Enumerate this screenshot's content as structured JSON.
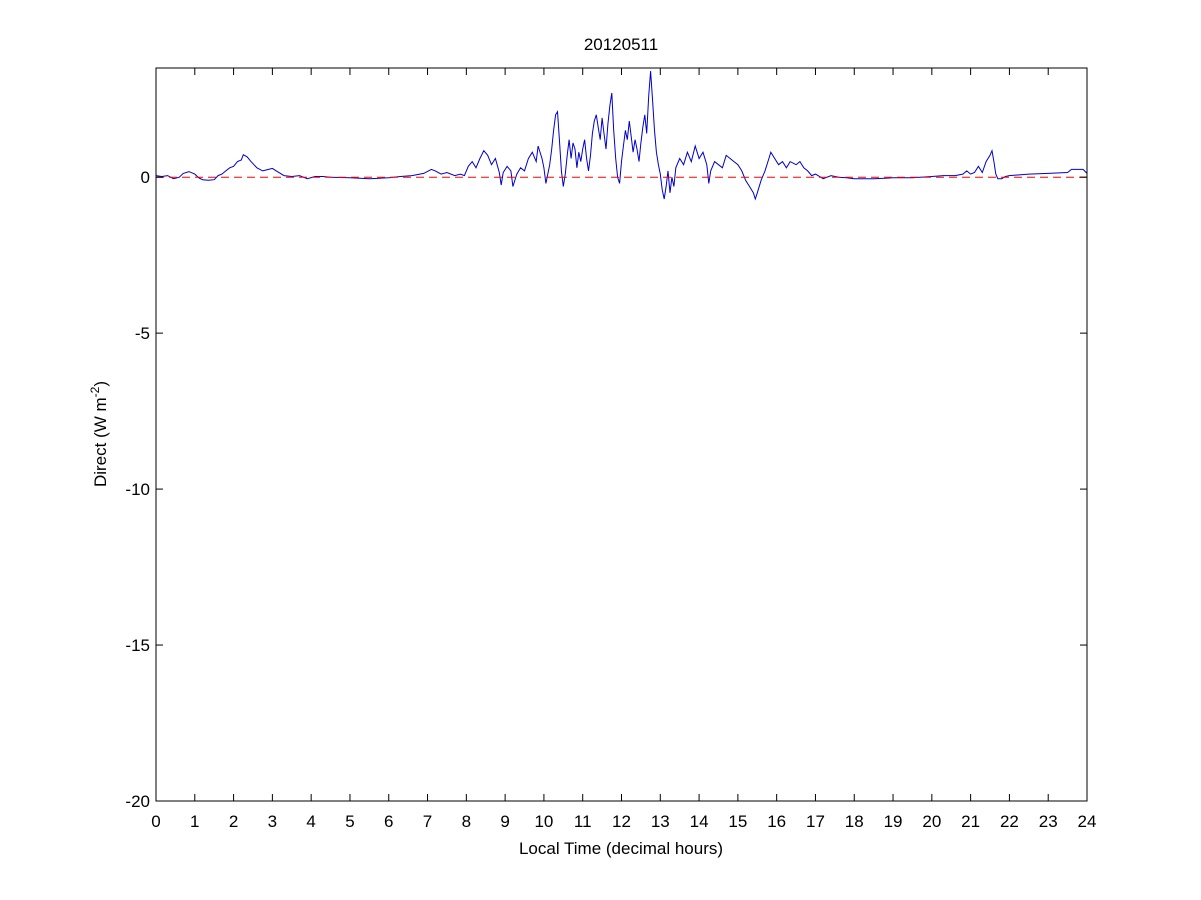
{
  "chart_data": {
    "type": "line",
    "title": "20120511",
    "xlabel": "Local Time (decimal hours)",
    "ylabel_main": "Direct (W m",
    "ylabel_sup": "-2",
    "ylabel_close": ")",
    "xlim": [
      0,
      24
    ],
    "ylim": [
      -20,
      3.5
    ],
    "xticks": [
      0,
      1,
      2,
      3,
      4,
      5,
      6,
      7,
      8,
      9,
      10,
      11,
      12,
      13,
      14,
      15,
      16,
      17,
      18,
      19,
      20,
      21,
      22,
      23,
      24
    ],
    "yticks": [
      0,
      -5,
      -10,
      -15,
      -20
    ],
    "grid": false,
    "series": [
      {
        "color": "#0000cc",
        "style": "solid",
        "points": [
          [
            0.0,
            0.05
          ],
          [
            0.15,
            0.02
          ],
          [
            0.3,
            0.05
          ],
          [
            0.45,
            -0.05
          ],
          [
            0.6,
            0.0
          ],
          [
            0.7,
            0.12
          ],
          [
            0.85,
            0.18
          ],
          [
            1.0,
            0.1
          ],
          [
            1.1,
            -0.02
          ],
          [
            1.2,
            -0.08
          ],
          [
            1.35,
            -0.1
          ],
          [
            1.5,
            -0.08
          ],
          [
            1.6,
            0.05
          ],
          [
            1.7,
            0.1
          ],
          [
            1.8,
            0.2
          ],
          [
            1.9,
            0.3
          ],
          [
            2.0,
            0.35
          ],
          [
            2.1,
            0.5
          ],
          [
            2.2,
            0.55
          ],
          [
            2.25,
            0.72
          ],
          [
            2.35,
            0.65
          ],
          [
            2.45,
            0.5
          ],
          [
            2.6,
            0.3
          ],
          [
            2.75,
            0.2
          ],
          [
            2.9,
            0.25
          ],
          [
            3.0,
            0.28
          ],
          [
            3.1,
            0.2
          ],
          [
            3.3,
            0.05
          ],
          [
            3.5,
            0.02
          ],
          [
            3.7,
            0.05
          ],
          [
            3.9,
            -0.05
          ],
          [
            4.1,
            0.02
          ],
          [
            4.3,
            0.02
          ],
          [
            4.5,
            0.0
          ],
          [
            5.0,
            -0.02
          ],
          [
            5.5,
            -0.05
          ],
          [
            6.0,
            -0.02
          ],
          [
            6.3,
            0.02
          ],
          [
            6.6,
            0.05
          ],
          [
            6.9,
            0.12
          ],
          [
            7.1,
            0.25
          ],
          [
            7.2,
            0.2
          ],
          [
            7.35,
            0.1
          ],
          [
            7.5,
            0.15
          ],
          [
            7.7,
            0.05
          ],
          [
            7.85,
            0.1
          ],
          [
            7.95,
            0.05
          ],
          [
            8.05,
            0.35
          ],
          [
            8.15,
            0.5
          ],
          [
            8.25,
            0.3
          ],
          [
            8.35,
            0.6
          ],
          [
            8.45,
            0.85
          ],
          [
            8.55,
            0.7
          ],
          [
            8.65,
            0.4
          ],
          [
            8.75,
            0.6
          ],
          [
            8.85,
            0.15
          ],
          [
            8.9,
            -0.25
          ],
          [
            8.95,
            0.15
          ],
          [
            9.05,
            0.35
          ],
          [
            9.15,
            0.2
          ],
          [
            9.2,
            -0.3
          ],
          [
            9.3,
            0.1
          ],
          [
            9.4,
            0.3
          ],
          [
            9.5,
            0.2
          ],
          [
            9.6,
            0.6
          ],
          [
            9.7,
            0.8
          ],
          [
            9.8,
            0.5
          ],
          [
            9.85,
            1.0
          ],
          [
            9.95,
            0.6
          ],
          [
            10.0,
            0.3
          ],
          [
            10.05,
            -0.2
          ],
          [
            10.15,
            0.4
          ],
          [
            10.2,
            0.9
          ],
          [
            10.25,
            1.5
          ],
          [
            10.3,
            2.0
          ],
          [
            10.35,
            2.1
          ],
          [
            10.4,
            1.2
          ],
          [
            10.45,
            0.2
          ],
          [
            10.5,
            -0.3
          ],
          [
            10.55,
            0.1
          ],
          [
            10.6,
            0.7
          ],
          [
            10.65,
            1.2
          ],
          [
            10.7,
            0.6
          ],
          [
            10.75,
            1.1
          ],
          [
            10.8,
            0.9
          ],
          [
            10.85,
            0.3
          ],
          [
            10.9,
            0.8
          ],
          [
            10.95,
            0.5
          ],
          [
            11.0,
            0.9
          ],
          [
            11.05,
            1.2
          ],
          [
            11.1,
            0.6
          ],
          [
            11.15,
            0.2
          ],
          [
            11.2,
            0.7
          ],
          [
            11.25,
            1.4
          ],
          [
            11.3,
            1.8
          ],
          [
            11.35,
            2.0
          ],
          [
            11.4,
            1.6
          ],
          [
            11.45,
            1.2
          ],
          [
            11.5,
            1.9
          ],
          [
            11.55,
            1.4
          ],
          [
            11.6,
            0.9
          ],
          [
            11.65,
            1.7
          ],
          [
            11.7,
            2.3
          ],
          [
            11.75,
            2.7
          ],
          [
            11.8,
            1.5
          ],
          [
            11.85,
            0.6
          ],
          [
            11.9,
            0.0
          ],
          [
            11.95,
            -0.2
          ],
          [
            12.0,
            0.5
          ],
          [
            12.05,
            1.0
          ],
          [
            12.1,
            1.5
          ],
          [
            12.15,
            1.2
          ],
          [
            12.2,
            1.8
          ],
          [
            12.25,
            1.3
          ],
          [
            12.3,
            0.8
          ],
          [
            12.35,
            1.2
          ],
          [
            12.4,
            0.9
          ],
          [
            12.45,
            0.5
          ],
          [
            12.5,
            1.1
          ],
          [
            12.55,
            1.6
          ],
          [
            12.6,
            2.0
          ],
          [
            12.65,
            1.4
          ],
          [
            12.7,
            2.6
          ],
          [
            12.75,
            3.4
          ],
          [
            12.8,
            2.5
          ],
          [
            12.85,
            1.5
          ],
          [
            12.9,
            0.8
          ],
          [
            12.95,
            0.4
          ],
          [
            13.0,
            0.1
          ],
          [
            13.05,
            -0.4
          ],
          [
            13.1,
            -0.7
          ],
          [
            13.15,
            -0.3
          ],
          [
            13.2,
            0.2
          ],
          [
            13.25,
            -0.5
          ],
          [
            13.3,
            0.0
          ],
          [
            13.35,
            -0.3
          ],
          [
            13.4,
            0.3
          ],
          [
            13.5,
            0.6
          ],
          [
            13.6,
            0.4
          ],
          [
            13.7,
            0.8
          ],
          [
            13.8,
            0.5
          ],
          [
            13.9,
            1.0
          ],
          [
            14.0,
            0.6
          ],
          [
            14.1,
            0.8
          ],
          [
            14.2,
            0.4
          ],
          [
            14.25,
            -0.2
          ],
          [
            14.3,
            0.2
          ],
          [
            14.4,
            0.5
          ],
          [
            14.5,
            0.4
          ],
          [
            14.6,
            0.3
          ],
          [
            14.7,
            0.7
          ],
          [
            14.8,
            0.6
          ],
          [
            14.9,
            0.5
          ],
          [
            15.0,
            0.4
          ],
          [
            15.1,
            0.2
          ],
          [
            15.2,
            -0.1
          ],
          [
            15.3,
            -0.3
          ],
          [
            15.4,
            -0.5
          ],
          [
            15.45,
            -0.7
          ],
          [
            15.5,
            -0.5
          ],
          [
            15.6,
            -0.1
          ],
          [
            15.7,
            0.2
          ],
          [
            15.8,
            0.6
          ],
          [
            15.85,
            0.8
          ],
          [
            15.95,
            0.6
          ],
          [
            16.05,
            0.4
          ],
          [
            16.15,
            0.5
          ],
          [
            16.25,
            0.3
          ],
          [
            16.35,
            0.5
          ],
          [
            16.5,
            0.4
          ],
          [
            16.6,
            0.5
          ],
          [
            16.7,
            0.3
          ],
          [
            16.8,
            0.2
          ],
          [
            16.9,
            0.05
          ],
          [
            17.0,
            0.1
          ],
          [
            17.2,
            -0.05
          ],
          [
            17.4,
            0.05
          ],
          [
            17.6,
            0.0
          ],
          [
            17.8,
            -0.02
          ],
          [
            18.0,
            -0.05
          ],
          [
            18.5,
            -0.05
          ],
          [
            19.0,
            -0.02
          ],
          [
            19.5,
            -0.02
          ],
          [
            20.0,
            0.02
          ],
          [
            20.3,
            0.05
          ],
          [
            20.6,
            0.05
          ],
          [
            20.8,
            0.1
          ],
          [
            20.9,
            0.2
          ],
          [
            21.0,
            0.1
          ],
          [
            21.1,
            0.15
          ],
          [
            21.2,
            0.35
          ],
          [
            21.3,
            0.15
          ],
          [
            21.4,
            0.5
          ],
          [
            21.5,
            0.7
          ],
          [
            21.55,
            0.85
          ],
          [
            21.6,
            0.5
          ],
          [
            21.65,
            0.1
          ],
          [
            21.7,
            -0.05
          ],
          [
            21.8,
            -0.05
          ],
          [
            21.9,
            0.02
          ],
          [
            22.0,
            0.05
          ],
          [
            22.5,
            0.1
          ],
          [
            23.0,
            0.12
          ],
          [
            23.5,
            0.15
          ],
          [
            23.6,
            0.25
          ],
          [
            23.9,
            0.25
          ],
          [
            24.0,
            0.12
          ]
        ]
      },
      {
        "color": "#ff0000",
        "style": "dashed",
        "points": [
          [
            0,
            0
          ],
          [
            24,
            0
          ]
        ]
      }
    ]
  }
}
